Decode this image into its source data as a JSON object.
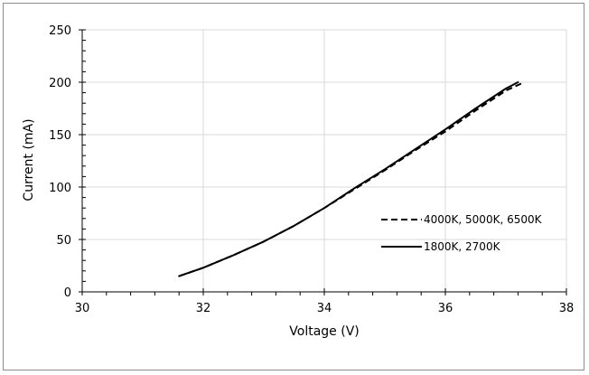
{
  "chart_data": {
    "type": "line",
    "title": "",
    "xlabel": "Voltage (V)",
    "ylabel": "Current (mA)",
    "xlim": [
      30,
      38
    ],
    "ylim": [
      0,
      250
    ],
    "x_ticks": [
      30,
      32,
      34,
      36,
      38
    ],
    "y_ticks": [
      0,
      50,
      100,
      150,
      200,
      250
    ],
    "grid": true,
    "legend_position": "center-right",
    "series": [
      {
        "name": "4000K, 5000K, 6500K",
        "style": "dashed",
        "color": "#000000",
        "points": [
          [
            31.6,
            15
          ],
          [
            32,
            23
          ],
          [
            32.5,
            35
          ],
          [
            33,
            48
          ],
          [
            33.5,
            63
          ],
          [
            34,
            80
          ],
          [
            34.5,
            98
          ],
          [
            35,
            116
          ],
          [
            35.5,
            135
          ],
          [
            36,
            153
          ],
          [
            36.5,
            173
          ],
          [
            37,
            192
          ],
          [
            37.3,
            200
          ]
        ]
      },
      {
        "name": "1800K, 2700K",
        "style": "solid",
        "color": "#000000",
        "points": [
          [
            31.6,
            15
          ],
          [
            32,
            23
          ],
          [
            32.5,
            35
          ],
          [
            33,
            48
          ],
          [
            33.5,
            63
          ],
          [
            34,
            80
          ],
          [
            34.5,
            99
          ],
          [
            35,
            117
          ],
          [
            35.5,
            136
          ],
          [
            36,
            155
          ],
          [
            36.5,
            175
          ],
          [
            37,
            194
          ],
          [
            37.2,
            200
          ]
        ]
      }
    ]
  }
}
